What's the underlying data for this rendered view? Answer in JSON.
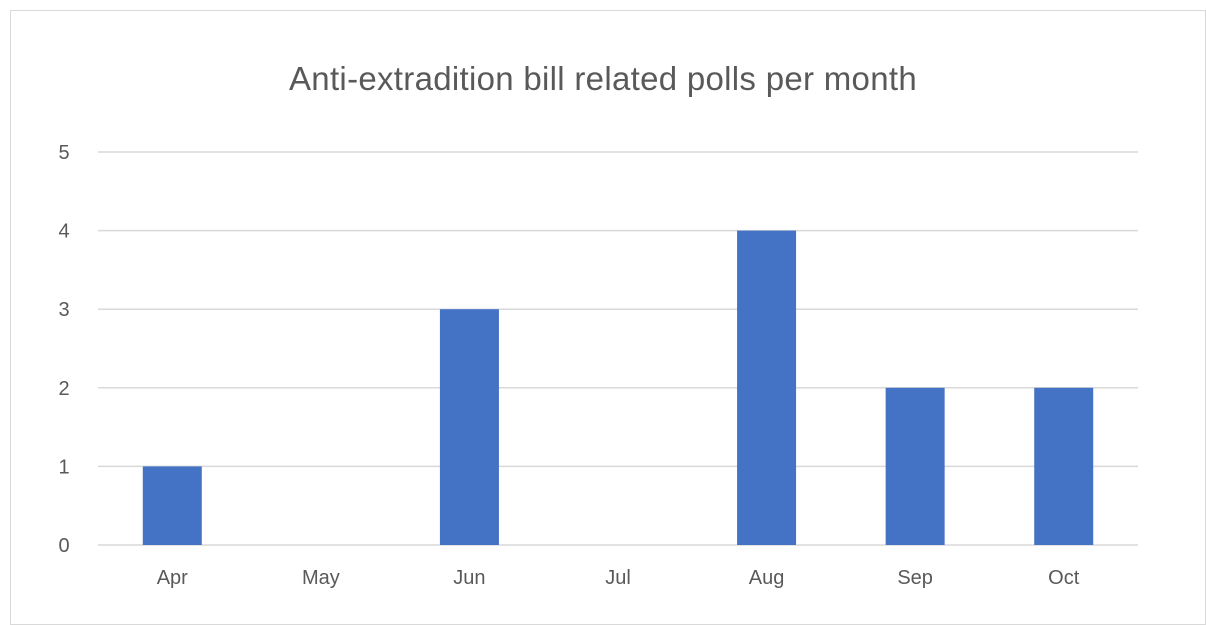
{
  "chart_data": {
    "type": "bar",
    "title": "Anti-extradition bill related polls per month",
    "categories": [
      "Apr",
      "May",
      "Jun",
      "Jul",
      "Aug",
      "Sep",
      "Oct"
    ],
    "series": [
      {
        "values": [
          1,
          0,
          3,
          0,
          4,
          2,
          2
        ]
      }
    ],
    "ylim": [
      0,
      5
    ],
    "yticks": [
      0,
      1,
      2,
      3,
      4,
      5
    ],
    "xlabel": "",
    "ylabel": "",
    "grid": true,
    "legend": "none",
    "colors": {
      "bar": "#4472c4",
      "grid": "#d9d9d9",
      "text": "#595959"
    }
  }
}
